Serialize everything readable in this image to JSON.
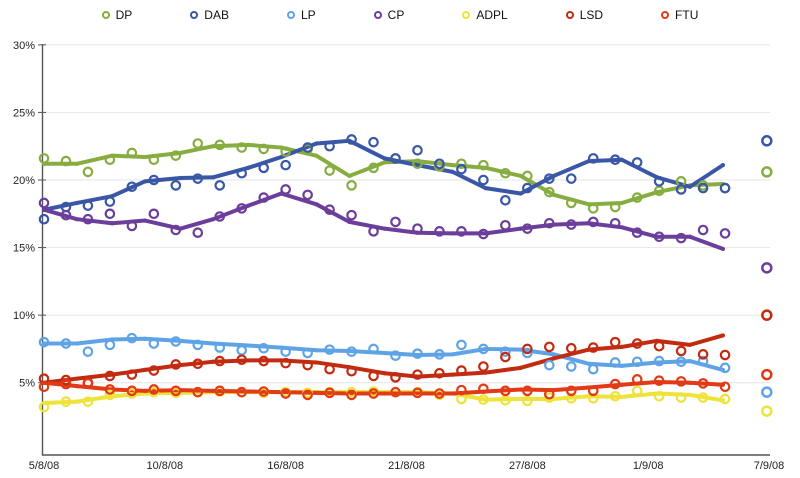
{
  "chart_data": {
    "type": "line+scatter",
    "title": "",
    "description": "Party support polling trends with daily survey points, smoothed trend lines and final result markers",
    "grid": true,
    "background": "#ffffff",
    "axis_color": "#555555",
    "grid_color": "#e4e4e4",
    "y_axis": {
      "unit": "%",
      "range": [
        0,
        30
      ],
      "tick_values": [
        30,
        25,
        20,
        15,
        10,
        5
      ],
      "tick_labels": [
        "30%",
        "25%",
        "20%",
        "15%",
        "10%",
        "5%"
      ]
    },
    "x_axis": {
      "range_days": [
        0,
        33.2
      ],
      "tick_positions_days": [
        0,
        5.5,
        11,
        16.5,
        22,
        27.5,
        33
      ],
      "tick_labels": [
        "5/8/08",
        "10/8/08",
        "16/8/08",
        "21/8/08",
        "27/8/08",
        "1/9/08",
        "7/9/08"
      ]
    },
    "trend_x_days": [
      0,
      1.5,
      3.1,
      4.6,
      6.2,
      7.7,
      9.3,
      10.8,
      12.4,
      13.9,
      15.5,
      17,
      18.6,
      20.1,
      21.7,
      23.2,
      24.8,
      26.3,
      27.9,
      29.4,
      30.9
    ],
    "scatter_x_days": [
      0,
      1,
      2,
      3,
      4,
      5,
      6,
      7,
      8,
      9,
      10,
      11,
      12,
      13,
      14,
      15,
      16,
      17,
      18,
      19,
      20,
      21,
      22,
      23,
      24,
      25,
      26,
      27,
      28,
      29,
      30,
      31
    ],
    "result_x_day": 32.9,
    "legend_position": "top",
    "series": [
      {
        "name": "DP",
        "color": "#87ad41",
        "trend": [
          21.2,
          21.2,
          21.8,
          21.7,
          22.0,
          22.5,
          22.6,
          22.4,
          21.8,
          20.3,
          21.3,
          21.4,
          21.1,
          20.9,
          20.3,
          18.9,
          18.2,
          18.3,
          19.1,
          19.6,
          19.7
        ],
        "scatter": [
          21.6,
          21.4,
          20.6,
          21.5,
          22.0,
          21.5,
          21.8,
          22.7,
          22.6,
          22.4,
          22.3,
          22.1,
          22.3,
          20.7,
          19.6,
          20.9,
          21.6,
          21.2,
          21.0,
          21.2,
          21.1,
          20.5,
          20.3,
          19.1,
          18.3,
          17.9,
          18.0,
          18.7,
          19.2,
          19.9,
          19.6,
          19.4
        ],
        "result": 20.6
      },
      {
        "name": "DAB",
        "color": "#3a57a7",
        "trend": [
          17.8,
          18.3,
          18.8,
          19.9,
          20.15,
          20.2,
          20.9,
          21.7,
          22.7,
          22.9,
          21.6,
          21.1,
          20.6,
          19.4,
          19.0,
          20.3,
          21.4,
          21.5,
          20.2,
          19.5,
          21.1
        ],
        "scatter": [
          17.1,
          18.0,
          18.1,
          18.4,
          19.5,
          20.0,
          19.6,
          20.1,
          19.6,
          20.5,
          20.9,
          21.1,
          22.4,
          22.5,
          23.0,
          22.8,
          21.6,
          22.2,
          21.2,
          20.8,
          20.0,
          18.5,
          19.4,
          20.1,
          20.1,
          21.6,
          21.5,
          21.3,
          19.9,
          19.3,
          19.4,
          19.4
        ],
        "result": 22.9
      },
      {
        "name": "LP",
        "color": "#5fa3e7",
        "trend": [
          7.9,
          7.9,
          8.2,
          8.25,
          8.1,
          7.9,
          7.75,
          7.6,
          7.4,
          7.35,
          7.2,
          7.05,
          7.1,
          7.5,
          7.45,
          7.1,
          6.4,
          6.25,
          6.5,
          6.6,
          5.95
        ],
        "scatter": [
          8.0,
          7.9,
          7.3,
          7.8,
          8.3,
          7.9,
          8.05,
          7.8,
          7.6,
          7.4,
          7.55,
          7.3,
          7.2,
          7.45,
          7.3,
          7.5,
          7.0,
          7.15,
          7.1,
          7.8,
          7.5,
          7.3,
          7.2,
          6.3,
          6.2,
          6.0,
          6.5,
          6.55,
          6.6,
          6.55,
          6.6,
          6.1
        ],
        "result": 4.3
      },
      {
        "name": "CP",
        "color": "#6b3e9b",
        "trend": [
          17.8,
          17.1,
          16.8,
          17.0,
          16.4,
          17.1,
          18.1,
          19.0,
          18.2,
          16.9,
          16.4,
          16.1,
          16.05,
          16.05,
          16.4,
          16.7,
          16.8,
          16.5,
          15.8,
          15.8,
          14.9
        ],
        "scatter": [
          18.3,
          17.4,
          17.1,
          17.5,
          16.6,
          17.5,
          16.3,
          16.1,
          17.3,
          17.9,
          18.7,
          19.3,
          18.9,
          17.8,
          17.4,
          16.2,
          16.9,
          16.4,
          16.2,
          16.2,
          16.0,
          16.65,
          16.4,
          16.8,
          16.7,
          16.9,
          16.8,
          16.1,
          15.8,
          15.7,
          16.3,
          16.05
        ],
        "result": 13.5
      },
      {
        "name": "ADPL",
        "color": "#ede33a",
        "trend": [
          3.5,
          3.6,
          4.0,
          4.2,
          4.25,
          4.3,
          4.3,
          4.3,
          4.3,
          4.3,
          4.3,
          4.3,
          4.2,
          3.75,
          3.8,
          3.8,
          4.0,
          3.95,
          4.2,
          4.1,
          3.7
        ],
        "scatter": [
          3.2,
          3.6,
          3.6,
          4.1,
          4.2,
          4.3,
          4.25,
          4.3,
          4.35,
          4.3,
          4.25,
          4.3,
          4.25,
          4.3,
          4.3,
          4.35,
          4.3,
          4.3,
          4.1,
          3.8,
          3.75,
          3.7,
          3.65,
          3.9,
          3.85,
          3.85,
          4.0,
          4.4,
          4.0,
          3.9,
          3.9,
          3.8
        ],
        "result": 2.9
      },
      {
        "name": "LSD",
        "color": "#c32b10",
        "trend": [
          5.0,
          5.3,
          5.6,
          5.95,
          6.3,
          6.55,
          6.65,
          6.65,
          6.5,
          6.15,
          5.7,
          5.45,
          5.6,
          5.75,
          6.1,
          6.8,
          7.45,
          7.65,
          8.1,
          7.8,
          8.5
        ],
        "scatter": [
          5.3,
          5.2,
          5.0,
          5.5,
          5.6,
          5.9,
          6.35,
          6.4,
          6.6,
          6.7,
          6.6,
          6.45,
          6.3,
          6.0,
          5.85,
          5.5,
          5.4,
          5.6,
          5.7,
          5.9,
          6.2,
          6.9,
          7.5,
          7.65,
          7.55,
          7.6,
          8.0,
          7.9,
          7.7,
          7.35,
          7.1,
          7.05
        ],
        "result": 10.0
      },
      {
        "name": "FTU",
        "color": "#e23a17",
        "trend": [
          5.0,
          4.75,
          4.5,
          4.4,
          4.45,
          4.4,
          4.35,
          4.3,
          4.25,
          4.2,
          4.2,
          4.2,
          4.2,
          4.35,
          4.5,
          4.45,
          4.65,
          4.85,
          5.05,
          5.0,
          4.85
        ],
        "scatter": [
          4.7,
          4.9,
          4.95,
          4.5,
          4.4,
          4.5,
          4.4,
          4.3,
          4.4,
          4.3,
          4.35,
          4.2,
          4.1,
          4.25,
          4.1,
          4.2,
          4.3,
          4.25,
          4.2,
          4.45,
          4.55,
          4.4,
          4.4,
          4.15,
          4.4,
          4.4,
          4.9,
          5.25,
          5.15,
          5.1,
          4.95,
          4.7
        ],
        "result": 5.6
      }
    ]
  }
}
